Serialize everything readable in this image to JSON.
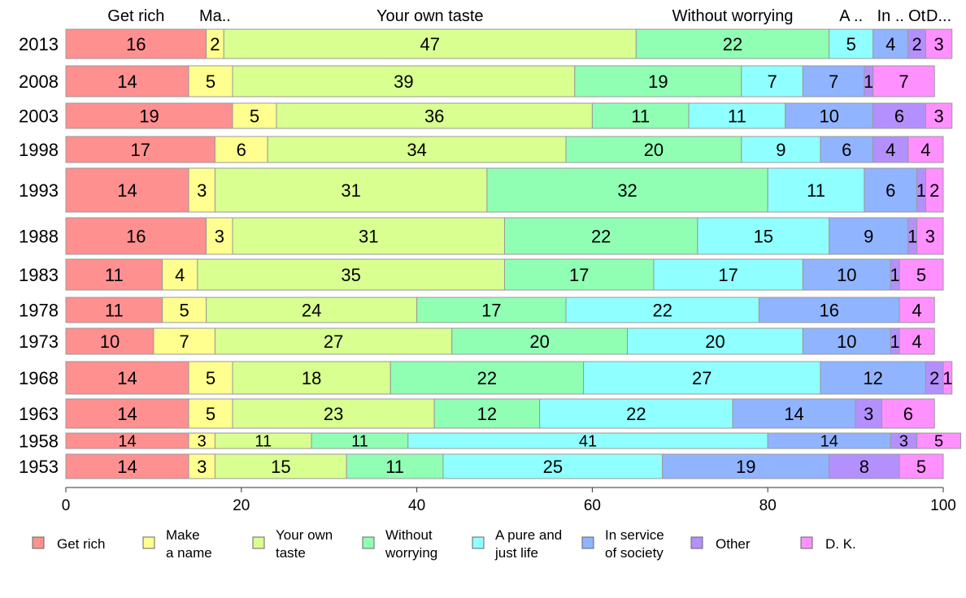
{
  "chart_data": {
    "type": "bar",
    "orientation": "horizontal",
    "stacked": true,
    "categories": [
      "2013",
      "2008",
      "2003",
      "1998",
      "1993",
      "1988",
      "1983",
      "1978",
      "1973",
      "1968",
      "1963",
      "1958",
      "1953"
    ],
    "series": [
      {
        "name": "Get rich",
        "color": "#ff9090",
        "values": [
          16,
          14,
          19,
          17,
          14,
          16,
          11,
          11,
          10,
          14,
          14,
          14,
          14
        ]
      },
      {
        "name": "Make a name",
        "color": "#ffff90",
        "values": [
          2,
          5,
          5,
          6,
          3,
          3,
          4,
          5,
          7,
          5,
          5,
          3,
          3
        ]
      },
      {
        "name": "Your own taste",
        "color": "#d8ff90",
        "values": [
          47,
          39,
          36,
          34,
          31,
          31,
          35,
          24,
          27,
          18,
          23,
          11,
          15
        ]
      },
      {
        "name": "Without worrying",
        "color": "#90ffb4",
        "values": [
          22,
          19,
          11,
          20,
          32,
          22,
          17,
          17,
          20,
          22,
          12,
          11,
          11
        ]
      },
      {
        "name": "A pure and just life",
        "color": "#90ffff",
        "values": [
          5,
          7,
          11,
          9,
          11,
          15,
          17,
          22,
          20,
          27,
          22,
          41,
          25
        ]
      },
      {
        "name": "In service of society",
        "color": "#90b4ff",
        "values": [
          4,
          7,
          10,
          6,
          6,
          9,
          10,
          16,
          10,
          12,
          14,
          14,
          19
        ]
      },
      {
        "name": "Other",
        "color": "#b490ff",
        "values": [
          2,
          1,
          6,
          4,
          1,
          1,
          1,
          0,
          1,
          2,
          3,
          3,
          8
        ]
      },
      {
        "name": "D. K.",
        "color": "#ff90ff",
        "values": [
          3,
          7,
          3,
          4,
          2,
          3,
          5,
          4,
          4,
          1,
          6,
          5,
          5
        ]
      }
    ],
    "column_header_labels": [
      "Get rich",
      "Ma..",
      "Your own taste",
      "Without worrying",
      "A ..",
      "In ..",
      "Ot",
      "D..."
    ],
    "legend_labels": [
      [
        "Get rich"
      ],
      [
        "Make",
        "a name"
      ],
      [
        "Your own",
        "taste"
      ],
      [
        "Without",
        "worrying"
      ],
      [
        "A pure and",
        "just life"
      ],
      [
        "In service",
        "of society"
      ],
      [
        "Other"
      ],
      [
        "D. K."
      ]
    ],
    "xlim": [
      0,
      100
    ],
    "xticks": [
      0,
      20,
      40,
      60,
      80,
      100
    ],
    "legend_position": "bottom",
    "grid": false
  }
}
